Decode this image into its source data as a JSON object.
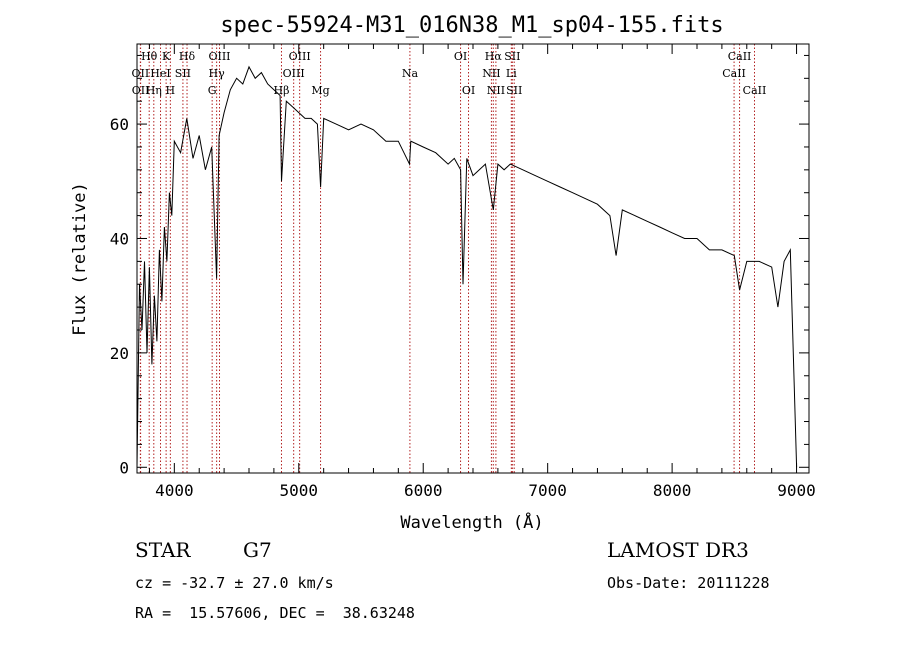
{
  "chart_data": {
    "type": "line",
    "title": "spec-55924-M31_016N38_M1_sp04-155.fits",
    "xlabel": "Wavelength (Å)",
    "ylabel": "Flux (relative)",
    "xlim": [
      3700,
      9100
    ],
    "ylim": [
      -1,
      74
    ],
    "xticks": [
      4000,
      5000,
      6000,
      7000,
      8000,
      9000
    ],
    "yticks": [
      0,
      20,
      40,
      60
    ],
    "series": [
      {
        "name": "flux",
        "x": [
          3700,
          3720,
          3740,
          3760,
          3780,
          3800,
          3820,
          3840,
          3860,
          3880,
          3900,
          3920,
          3940,
          3960,
          3980,
          4000,
          4050,
          4100,
          4150,
          4200,
          4250,
          4300,
          4340,
          4360,
          4400,
          4450,
          4500,
          4550,
          4600,
          4650,
          4700,
          4750,
          4800,
          4850,
          4861,
          4900,
          4950,
          5000,
          5050,
          5100,
          5150,
          5175,
          5200,
          5300,
          5400,
          5500,
          5600,
          5700,
          5800,
          5890,
          5900,
          6000,
          6100,
          6200,
          6250,
          6300,
          6320,
          6350,
          6400,
          6500,
          6563,
          6600,
          6650,
          6700,
          6800,
          6900,
          7000,
          7100,
          7200,
          7300,
          7400,
          7500,
          7550,
          7600,
          7700,
          7800,
          7900,
          8000,
          8100,
          8200,
          8300,
          8400,
          8500,
          8542,
          8600,
          8660,
          8700,
          8800,
          8850,
          8900,
          8950,
          9000
        ],
        "values": [
          0,
          32,
          24,
          36,
          20,
          35,
          18,
          30,
          22,
          38,
          29,
          42,
          36,
          48,
          44,
          57,
          55,
          61,
          54,
          58,
          52,
          56,
          33,
          58,
          62,
          66,
          68,
          67,
          70,
          68,
          69,
          67,
          66,
          65,
          50,
          64,
          63,
          62,
          61,
          61,
          60,
          49,
          61,
          60,
          59,
          60,
          59,
          57,
          57,
          53,
          57,
          56,
          55,
          53,
          54,
          52,
          32,
          54,
          51,
          53,
          45,
          53,
          52,
          53,
          52,
          51,
          50,
          49,
          48,
          47,
          46,
          44,
          37,
          45,
          44,
          43,
          42,
          41,
          40,
          40,
          38,
          38,
          37,
          31,
          36,
          36,
          36,
          35,
          28,
          36,
          38,
          0
        ]
      }
    ],
    "spectral_lines": [
      {
        "label": "Hθ",
        "x": 3798,
        "row": 0
      },
      {
        "label": "OII",
        "x": 3727,
        "row": 1
      },
      {
        "label": "OII",
        "x": 3729,
        "row": 2
      },
      {
        "label": "Hη",
        "x": 3835,
        "row": 2
      },
      {
        "label": "HeI",
        "x": 3889,
        "row": 1
      },
      {
        "label": "K",
        "x": 3934,
        "row": 0
      },
      {
        "label": "SII",
        "x": 4069,
        "row": 1
      },
      {
        "label": "H",
        "x": 3968,
        "row": 2
      },
      {
        "label": "Hδ",
        "x": 4102,
        "row": 0
      },
      {
        "label": "OIII",
        "x": 4363,
        "row": 0
      },
      {
        "label": "Hγ",
        "x": 4340,
        "row": 1
      },
      {
        "label": "G",
        "x": 4304,
        "row": 2
      },
      {
        "label": "OIII",
        "x": 5007,
        "row": 0
      },
      {
        "label": "OIII",
        "x": 4959,
        "row": 1
      },
      {
        "label": "Hβ",
        "x": 4861,
        "row": 2
      },
      {
        "label": "Mg",
        "x": 5175,
        "row": 2
      },
      {
        "label": "Na",
        "x": 5893,
        "row": 1
      },
      {
        "label": "OI",
        "x": 6300,
        "row": 0
      },
      {
        "label": "OI",
        "x": 6364,
        "row": 2
      },
      {
        "label": "Hα",
        "x": 6563,
        "row": 0
      },
      {
        "label": "NII",
        "x": 6548,
        "row": 1
      },
      {
        "label": "NII",
        "x": 6584,
        "row": 2
      },
      {
        "label": "SII",
        "x": 6716,
        "row": 0
      },
      {
        "label": "Li",
        "x": 6708,
        "row": 1
      },
      {
        "label": "SII",
        "x": 6731,
        "row": 2
      },
      {
        "label": "CaII",
        "x": 8542,
        "row": 0
      },
      {
        "label": "CaII",
        "x": 8498,
        "row": 1
      },
      {
        "label": "CaII",
        "x": 8662,
        "row": 2
      }
    ]
  },
  "info": {
    "object_class": "STAR",
    "subclass": "G7",
    "survey": "LAMOST DR3",
    "redshift_text": "cz = -32.7 ± 27.0 km/s",
    "obs_date": "Obs-Date: 20111228",
    "coords": "RA =  15.57606, DEC =  38.63248"
  },
  "colors": {
    "line_marker": "#b22222",
    "spectrum": "#000000"
  }
}
